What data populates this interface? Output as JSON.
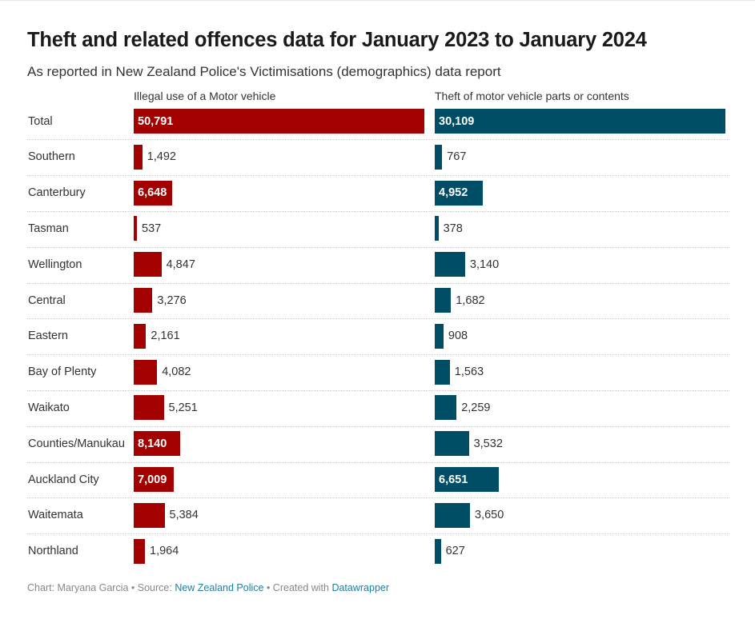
{
  "title": "Theft and related offences data for January 2023 to January 2024",
  "subtitle": "As reported in New Zealand Police's Victimisations (demographics) data report",
  "footer": {
    "prefix": "Chart: Maryana Garcia • Source: ",
    "source_link": "New Zealand Police",
    "middle": " • Created with ",
    "tool_link": "Datawrapper"
  },
  "colors": {
    "illegal_use": "#a30000",
    "theft_parts": "#004d66"
  },
  "chart_data": {
    "type": "bar",
    "orientation": "horizontal",
    "categories": [
      "Total",
      "Southern",
      "Canterbury",
      "Tasman",
      "Wellington",
      "Central",
      "Eastern",
      "Bay of Plenty",
      "Waikato",
      "Counties/Manukau",
      "Auckland City",
      "Waitemata",
      "Northland"
    ],
    "series": [
      {
        "name": "Illegal use of a Motor vehicle",
        "color": "#a30000",
        "values": [
          50791,
          1492,
          6648,
          537,
          4847,
          3276,
          2161,
          4082,
          5251,
          8140,
          7009,
          5384,
          1964
        ],
        "labels": [
          "50,791",
          "1,492",
          "6,648",
          "537",
          "4,847",
          "3,276",
          "2,161",
          "4,082",
          "5,251",
          "8,140",
          "7,009",
          "5,384",
          "1,964"
        ],
        "label_inside": [
          true,
          false,
          true,
          false,
          false,
          false,
          false,
          false,
          false,
          true,
          true,
          false,
          false
        ]
      },
      {
        "name": "Theft of motor vehicle parts or contents",
        "color": "#004d66",
        "values": [
          30109,
          767,
          4952,
          378,
          3140,
          1682,
          908,
          1563,
          2259,
          3532,
          6651,
          3650,
          627
        ],
        "labels": [
          "30,109",
          "767",
          "4,952",
          "378",
          "3,140",
          "1,682",
          "908",
          "1,563",
          "2,259",
          "3,532",
          "6,651",
          "3,650",
          "627"
        ],
        "label_inside": [
          true,
          false,
          true,
          false,
          false,
          false,
          false,
          false,
          false,
          false,
          true,
          false,
          false
        ]
      }
    ],
    "xlim_illegal_use": [
      0,
      50791
    ],
    "xlim_theft_parts": [
      0,
      30109
    ],
    "grid": false,
    "legend": "none"
  }
}
